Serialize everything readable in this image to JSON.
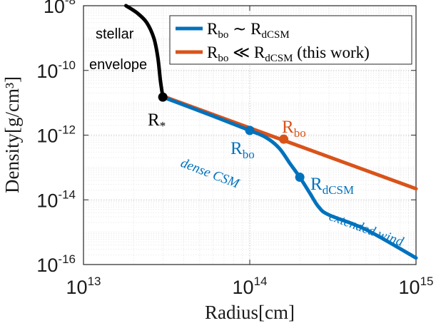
{
  "chart_data": {
    "type": "line",
    "xlabel": "Radius[cm]",
    "ylabel": "Density[g/cm³]",
    "xscale": "log",
    "yscale": "log",
    "xlim": [
      10000000000000.0,
      1000000000000000.0
    ],
    "ylim": [
      1e-16,
      1e-08
    ],
    "grid": "on (major and minor, dotted)",
    "legend_position": "top-right",
    "x_ticks": [
      {
        "base": "10",
        "exp": "13"
      },
      {
        "base": "10",
        "exp": "14"
      },
      {
        "base": "10",
        "exp": "15"
      }
    ],
    "y_ticks": [
      {
        "base": "10",
        "exp": "-8"
      },
      {
        "base": "10",
        "exp": "-10"
      },
      {
        "base": "10",
        "exp": "-12"
      },
      {
        "base": "10",
        "exp": "-14"
      },
      {
        "base": "10",
        "exp": "-16"
      }
    ],
    "series": [
      {
        "name": "stellar envelope",
        "color": "#000000",
        "points": [
          [
            18000000000000.0,
            1e-08
          ],
          [
            21000000000000.0,
            6e-09
          ],
          [
            24000000000000.0,
            3e-09
          ],
          [
            26500000000000.0,
            1e-09
          ],
          [
            28000000000000.0,
            2.5e-10
          ],
          [
            29000000000000.0,
            5e-11
          ],
          [
            30000000000000.0,
            1.5e-11
          ]
        ]
      },
      {
        "name": "Rbo ~ RdCSM",
        "color": "#0072bd",
        "points": [
          [
            30000000000000.0,
            1.5e-11
          ],
          [
            60000000000000.0,
            3.9e-12
          ],
          [
            100000000000000.0,
            1.4e-12
          ],
          [
            125000000000000.0,
            8.5e-13
          ],
          [
            150000000000000.0,
            4e-13
          ],
          [
            175000000000000.0,
            1.3e-13
          ],
          [
            200000000000000.0,
            5e-14
          ],
          [
            230000000000000.0,
            1.6e-14
          ],
          [
            260000000000000.0,
            6e-15
          ],
          [
            300000000000000.0,
            3.4e-15
          ],
          [
            500000000000000.0,
            1.2e-15
          ],
          [
            1000000000000000.0,
            1.6e-16
          ]
        ]
      },
      {
        "name": "Rbo ≪ RdCSM (this work)",
        "color": "#d95319",
        "points": [
          [
            30000000000000.0,
            1.6e-11
          ],
          [
            1000000000000000.0,
            2.2e-14
          ]
        ]
      }
    ],
    "markers": [
      {
        "label": "R*",
        "x": 30000000000000.0,
        "y": 1.5e-11,
        "color": "#000000"
      },
      {
        "label": "Rbo",
        "x": 100000000000000.0,
        "y": 1.4e-12,
        "color": "#0072bd"
      },
      {
        "label": "Rbo",
        "x": 160000000000000.0,
        "y": 7.5e-13,
        "color": "#d95319"
      },
      {
        "label": "RdCSM",
        "x": 200000000000000.0,
        "y": 5e-14,
        "color": "#0072bd"
      }
    ],
    "annotations": [
      "stellar",
      "envelope",
      "dense CSM",
      "extended wind"
    ],
    "legend": [
      {
        "label": "Rbo ~ RdCSM",
        "main": "R",
        "sub": "bo",
        "rel": " ∼ ",
        "main2": "R",
        "sub2": "dCSM",
        "tail": "",
        "color": "#0072bd"
      },
      {
        "label": "Rbo ≪ RdCSM (this work)",
        "main": "R",
        "sub": "bo",
        "rel": " ≪ ",
        "main2": "R",
        "sub2": "dCSM",
        "tail": " (this work)",
        "color": "#d95319"
      }
    ]
  },
  "text": {
    "stellar": "stellar",
    "envelope": "envelope",
    "dense_csm": "dense CSM",
    "extended_wind": "extended wind",
    "r_star_main": "R",
    "r_star_sub": "*",
    "rbo_main": "R",
    "rbo_sub": "bo",
    "rdcsm_main": "R",
    "rdcsm_sub": "dCSM"
  }
}
